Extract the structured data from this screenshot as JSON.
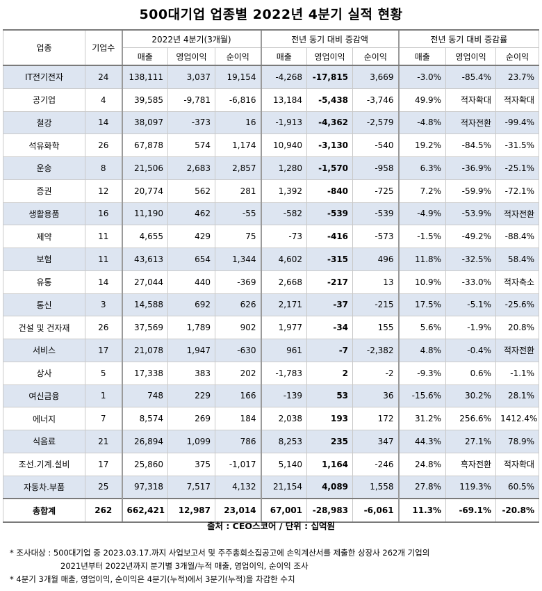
{
  "title": "500대기업 업종별 2022년 4분기 실적 현황",
  "headers": {
    "industry": "업종",
    "companies": "기업수",
    "group1": "2022년 4분기(3개월)",
    "group2": "전년 동기 대비 증감액",
    "group3": "전년 동기 대비 증감률",
    "sales": "매출",
    "op": "영업이익",
    "net": "순이익"
  },
  "rows": [
    {
      "industry": "IT전기전자",
      "count": "24",
      "sales": "138,111",
      "op": "3,037",
      "net": "19,154",
      "d_sales": "-4,268",
      "d_op": "-17,815",
      "d_net": "3,669",
      "r_sales": "-3.0%",
      "r_op": "-85.4%",
      "r_net": "23.7%"
    },
    {
      "industry": "공기업",
      "count": "4",
      "sales": "39,585",
      "op": "-9,781",
      "net": "-6,816",
      "d_sales": "13,184",
      "d_op": "-5,438",
      "d_net": "-3,746",
      "r_sales": "49.9%",
      "r_op": "적자확대",
      "r_net": "적자확대"
    },
    {
      "industry": "철강",
      "count": "14",
      "sales": "38,097",
      "op": "-373",
      "net": "16",
      "d_sales": "-1,913",
      "d_op": "-4,362",
      "d_net": "-2,579",
      "r_sales": "-4.8%",
      "r_op": "적자전환",
      "r_net": "-99.4%"
    },
    {
      "industry": "석유화학",
      "count": "26",
      "sales": "67,878",
      "op": "574",
      "net": "1,174",
      "d_sales": "10,940",
      "d_op": "-3,130",
      "d_net": "-540",
      "r_sales": "19.2%",
      "r_op": "-84.5%",
      "r_net": "-31.5%"
    },
    {
      "industry": "운송",
      "count": "8",
      "sales": "21,506",
      "op": "2,683",
      "net": "2,857",
      "d_sales": "1,280",
      "d_op": "-1,570",
      "d_net": "-958",
      "r_sales": "6.3%",
      "r_op": "-36.9%",
      "r_net": "-25.1%"
    },
    {
      "industry": "증권",
      "count": "12",
      "sales": "20,774",
      "op": "562",
      "net": "281",
      "d_sales": "1,392",
      "d_op": "-840",
      "d_net": "-725",
      "r_sales": "7.2%",
      "r_op": "-59.9%",
      "r_net": "-72.1%"
    },
    {
      "industry": "생활용품",
      "count": "16",
      "sales": "11,190",
      "op": "462",
      "net": "-55",
      "d_sales": "-582",
      "d_op": "-539",
      "d_net": "-539",
      "r_sales": "-4.9%",
      "r_op": "-53.9%",
      "r_net": "적자전환"
    },
    {
      "industry": "제약",
      "count": "11",
      "sales": "4,655",
      "op": "429",
      "net": "75",
      "d_sales": "-73",
      "d_op": "-416",
      "d_net": "-573",
      "r_sales": "-1.5%",
      "r_op": "-49.2%",
      "r_net": "-88.4%"
    },
    {
      "industry": "보험",
      "count": "11",
      "sales": "43,613",
      "op": "654",
      "net": "1,344",
      "d_sales": "4,602",
      "d_op": "-315",
      "d_net": "496",
      "r_sales": "11.8%",
      "r_op": "-32.5%",
      "r_net": "58.4%"
    },
    {
      "industry": "유통",
      "count": "14",
      "sales": "27,044",
      "op": "440",
      "net": "-369",
      "d_sales": "2,668",
      "d_op": "-217",
      "d_net": "13",
      "r_sales": "10.9%",
      "r_op": "-33.0%",
      "r_net": "적자축소"
    },
    {
      "industry": "통신",
      "count": "3",
      "sales": "14,588",
      "op": "692",
      "net": "626",
      "d_sales": "2,171",
      "d_op": "-37",
      "d_net": "-215",
      "r_sales": "17.5%",
      "r_op": "-5.1%",
      "r_net": "-25.6%"
    },
    {
      "industry": "건설 및 건자재",
      "count": "26",
      "sales": "37,569",
      "op": "1,789",
      "net": "902",
      "d_sales": "1,977",
      "d_op": "-34",
      "d_net": "155",
      "r_sales": "5.6%",
      "r_op": "-1.9%",
      "r_net": "20.8%"
    },
    {
      "industry": "서비스",
      "count": "17",
      "sales": "21,078",
      "op": "1,947",
      "net": "-630",
      "d_sales": "961",
      "d_op": "-7",
      "d_net": "-2,382",
      "r_sales": "4.8%",
      "r_op": "-0.4%",
      "r_net": "적자전환"
    },
    {
      "industry": "상사",
      "count": "5",
      "sales": "17,338",
      "op": "383",
      "net": "202",
      "d_sales": "-1,783",
      "d_op": "2",
      "d_net": "-2",
      "r_sales": "-9.3%",
      "r_op": "0.6%",
      "r_net": "-1.1%"
    },
    {
      "industry": "여신금융",
      "count": "1",
      "sales": "748",
      "op": "229",
      "net": "166",
      "d_sales": "-139",
      "d_op": "53",
      "d_net": "36",
      "r_sales": "-15.6%",
      "r_op": "30.2%",
      "r_net": "28.1%"
    },
    {
      "industry": "에너지",
      "count": "7",
      "sales": "8,574",
      "op": "269",
      "net": "184",
      "d_sales": "2,038",
      "d_op": "193",
      "d_net": "172",
      "r_sales": "31.2%",
      "r_op": "256.6%",
      "r_net": "1412.4%"
    },
    {
      "industry": "식음료",
      "count": "21",
      "sales": "26,894",
      "op": "1,099",
      "net": "786",
      "d_sales": "8,253",
      "d_op": "235",
      "d_net": "347",
      "r_sales": "44.3%",
      "r_op": "27.1%",
      "r_net": "78.9%"
    },
    {
      "industry": "조선.기계.설비",
      "count": "17",
      "sales": "25,860",
      "op": "375",
      "net": "-1,017",
      "d_sales": "5,140",
      "d_op": "1,164",
      "d_net": "-246",
      "r_sales": "24.8%",
      "r_op": "흑자전환",
      "r_net": "적자확대"
    },
    {
      "industry": "자동차.부품",
      "count": "25",
      "sales": "97,318",
      "op": "7,517",
      "net": "4,132",
      "d_sales": "21,154",
      "d_op": "4,089",
      "d_net": "1,558",
      "r_sales": "27.8%",
      "r_op": "119.3%",
      "r_net": "60.5%"
    }
  ],
  "total": {
    "industry": "총합계",
    "count": "262",
    "sales": "662,421",
    "op": "12,987",
    "net": "23,014",
    "d_sales": "67,001",
    "d_op": "-28,983",
    "d_net": "-6,061",
    "r_sales": "11.3%",
    "r_op": "-69.1%",
    "r_net": "-20.8%"
  },
  "source": "출처 : CEO스코어 / 단위 : 십억원",
  "notes": [
    "* 조사대상 : 500대기업 중 2023.03.17.까지 사업보고서 및 주주총회소집공고에 손익계산서를 제출한 상장사 262개 기업의",
    "2021년부터 2022년까지 분기별 3개월/누적 매출, 영업이익, 순이익 조사",
    "* 4분기 3개월 매출, 영업이익, 순이익은 4분기(누적)에서 3분기(누적)을 차감한 수치"
  ],
  "colors": {
    "shade": "#dde5f1",
    "border": "#c9c9c9"
  }
}
